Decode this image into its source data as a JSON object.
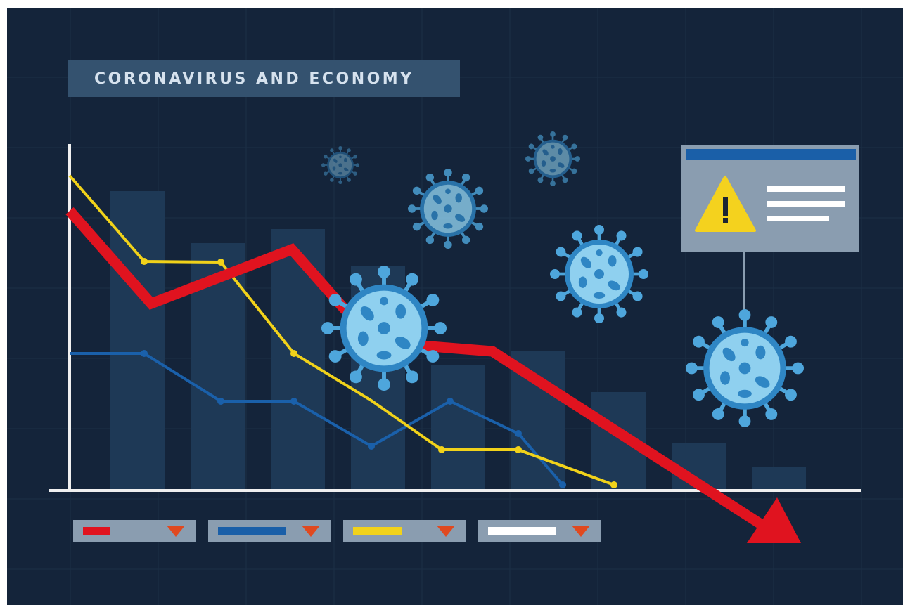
{
  "title": "CORONAVIRUS AND ECONOMY"
}
